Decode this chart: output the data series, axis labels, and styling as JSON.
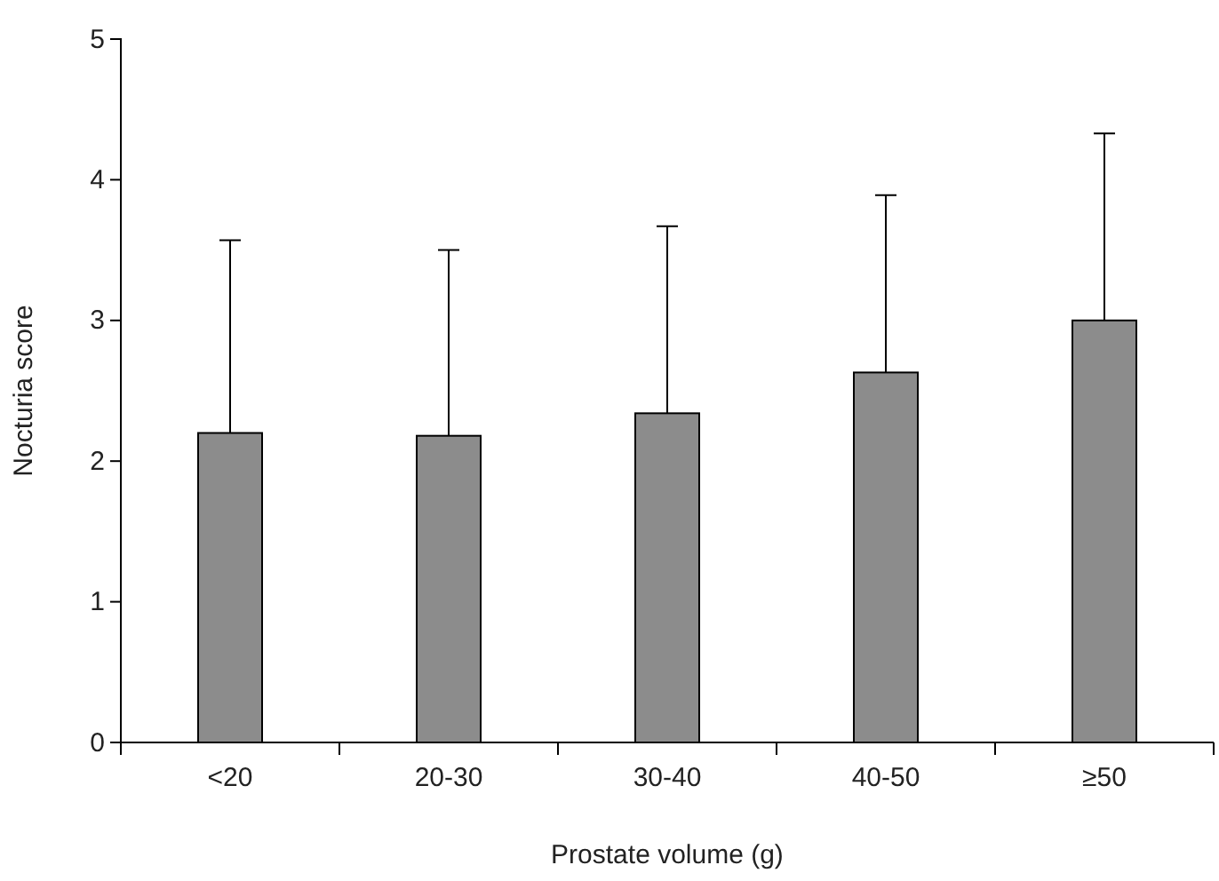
{
  "chart_data": {
    "type": "bar",
    "xlabel": "Prostate volume (g)",
    "ylabel": "Nocturia score",
    "categories": [
      "<20",
      "20-30",
      "30-40",
      "40-50",
      "≥50"
    ],
    "values": [
      2.2,
      2.18,
      2.34,
      2.63,
      3.0
    ],
    "errors": [
      [
        2.2,
        3.57
      ],
      [
        2.18,
        3.5
      ],
      [
        2.34,
        3.67
      ],
      [
        2.63,
        3.89
      ],
      [
        3.0,
        4.33
      ]
    ],
    "color": "#8c8c8c",
    "ylim": [
      0,
      5
    ],
    "yticks": [
      0,
      1,
      2,
      3,
      4,
      5
    ],
    "grid": false
  }
}
